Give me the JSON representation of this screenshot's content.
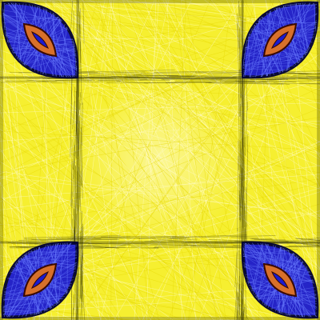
{
  "artwork": {
    "colors": {
      "field": "#f6ef30",
      "field_light": "#fbf7a8",
      "hatch": "#e6d800",
      "shadow": "#2a2a00",
      "lens_fill": "#1a1ad0",
      "lens_hatch": "#6a7dff",
      "lens_edge": "#000033",
      "eye_fill": "#d7702a",
      "eye_edge": "#3b0a00"
    },
    "lenses": [
      {
        "id": "top-left"
      },
      {
        "id": "top-right"
      },
      {
        "id": "bottom-left"
      },
      {
        "id": "bottom-right"
      }
    ]
  }
}
